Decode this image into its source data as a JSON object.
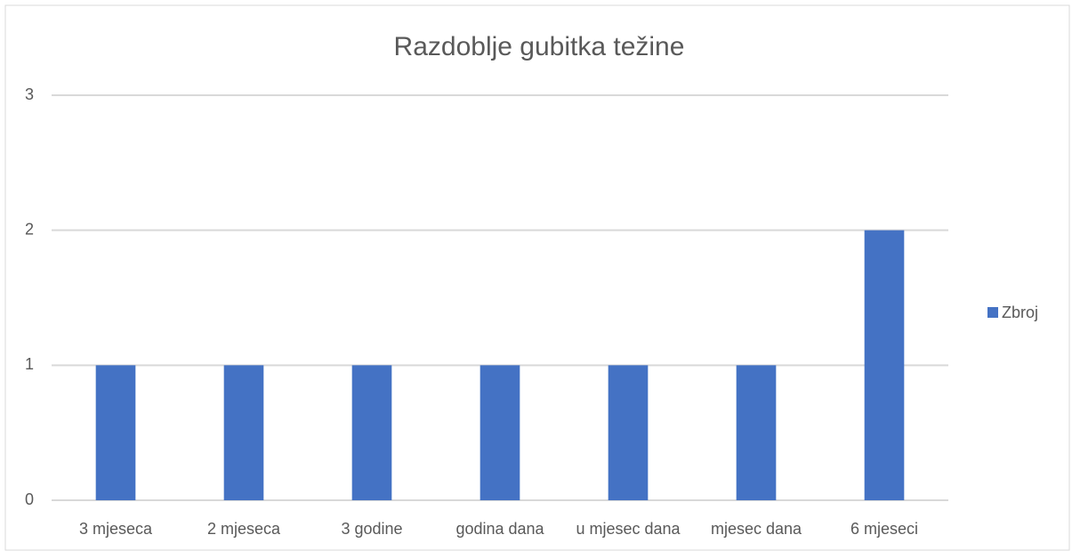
{
  "chart_data": {
    "type": "bar",
    "title": "Razdoblje gubitka težine",
    "categories": [
      "3 mjeseca",
      "2 mjeseca",
      "3 godine",
      "godina dana",
      "u mjesec dana",
      "mjesec dana",
      "6 mjeseci"
    ],
    "series": [
      {
        "name": "Zbroj",
        "color": "#4472c4",
        "values": [
          1,
          1,
          1,
          1,
          1,
          1,
          2
        ]
      }
    ],
    "ylim": [
      0,
      3
    ],
    "yticks": [
      0,
      1,
      2,
      3
    ],
    "grid": true,
    "legend": "right"
  }
}
